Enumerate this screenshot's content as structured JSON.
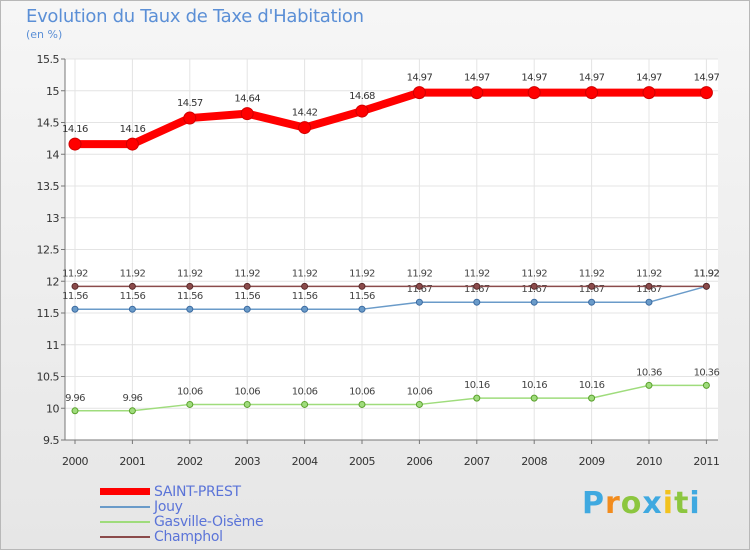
{
  "chart_data": {
    "type": "line",
    "title": "Evolution du Taux de Taxe d'Habitation",
    "ylabel": "(en %)",
    "xlabel": "",
    "ylim": [
      9.5,
      15.5
    ],
    "yticks": [
      "9.5",
      "10",
      "10.5",
      "11",
      "11.5",
      "12",
      "12.5",
      "13",
      "13.5",
      "14",
      "14.5",
      "15",
      "15.5"
    ],
    "categories": [
      "2000",
      "2001",
      "2002",
      "2003",
      "2004",
      "2005",
      "2006",
      "2007",
      "2008",
      "2009",
      "2010",
      "2011"
    ],
    "series": [
      {
        "name": "SAINT-PREST",
        "color": "#ff0000",
        "labels_above": true,
        "values": [
          14.16,
          14.16,
          14.57,
          14.64,
          14.42,
          14.68,
          14.97,
          14.97,
          14.97,
          14.97,
          14.97,
          14.97
        ],
        "labels": [
          "14.16",
          "14.16",
          "14.57",
          "14.64",
          "14.42",
          "14.68",
          "14.97",
          "14.97",
          "14.97",
          "14.97",
          "14.97",
          "14.97"
        ]
      },
      {
        "name": "Jouy",
        "color": "#6a9bc9",
        "labels_above": true,
        "values": [
          11.56,
          11.56,
          11.56,
          11.56,
          11.56,
          11.56,
          11.67,
          11.67,
          11.67,
          11.67,
          11.67,
          11.92
        ],
        "labels": [
          "11.56",
          "11.56",
          "11.56",
          "11.56",
          "11.56",
          "11.56",
          "11.67",
          "11.67",
          "11.67",
          "11.67",
          "11.67",
          "11.92"
        ]
      },
      {
        "name": "Gasville-Oisème",
        "color": "#9fdc7c",
        "labels_above": true,
        "values": [
          9.96,
          9.96,
          10.06,
          10.06,
          10.06,
          10.06,
          10.06,
          10.16,
          10.16,
          10.16,
          10.36,
          10.36
        ],
        "labels": [
          "9.96",
          "9.96",
          "10.06",
          "10.06",
          "10.06",
          "10.06",
          "10.06",
          "10.16",
          "10.16",
          "10.16",
          "10.36",
          "10.36"
        ]
      },
      {
        "name": "Champhol",
        "color": "#8b4b4b",
        "labels_above": true,
        "values": [
          11.92,
          11.92,
          11.92,
          11.92,
          11.92,
          11.92,
          11.92,
          11.92,
          11.92,
          11.92,
          11.92,
          11.92
        ],
        "labels": [
          "11.92",
          "11.92",
          "11.92",
          "11.92",
          "11.92",
          "11.92",
          "11.92",
          "11.92",
          "11.92",
          "11.92",
          "11.92",
          "11.92"
        ]
      }
    ],
    "legend_position": "bottom-left"
  },
  "logo": {
    "letters": [
      "P",
      "r",
      "o",
      "x",
      "i",
      "t",
      "i"
    ],
    "colors": [
      "#3fa9e0",
      "#f28c1e",
      "#8cc63f",
      "#3fa9e0",
      "#f2c21e",
      "#8cc63f",
      "#3fa9e0"
    ]
  }
}
